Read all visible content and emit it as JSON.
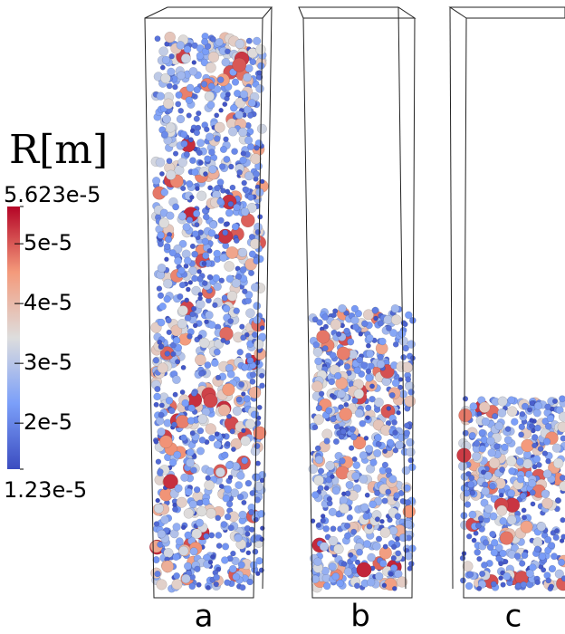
{
  "colorbar": {
    "title": "R[m]",
    "min": {
      "value": 1.23e-05,
      "label": "1.23e-5"
    },
    "max": {
      "value": 5.623e-05,
      "label": "5.623e-5"
    },
    "ticks": [
      {
        "value": 5e-05,
        "label": "5e-5"
      },
      {
        "value": 4e-05,
        "label": "4e-5"
      },
      {
        "value": 3e-05,
        "label": "3e-5"
      },
      {
        "value": 2e-05,
        "label": "2e-5"
      }
    ]
  },
  "panels": [
    {
      "label": "a"
    },
    {
      "label": "b"
    },
    {
      "label": "c"
    }
  ]
}
